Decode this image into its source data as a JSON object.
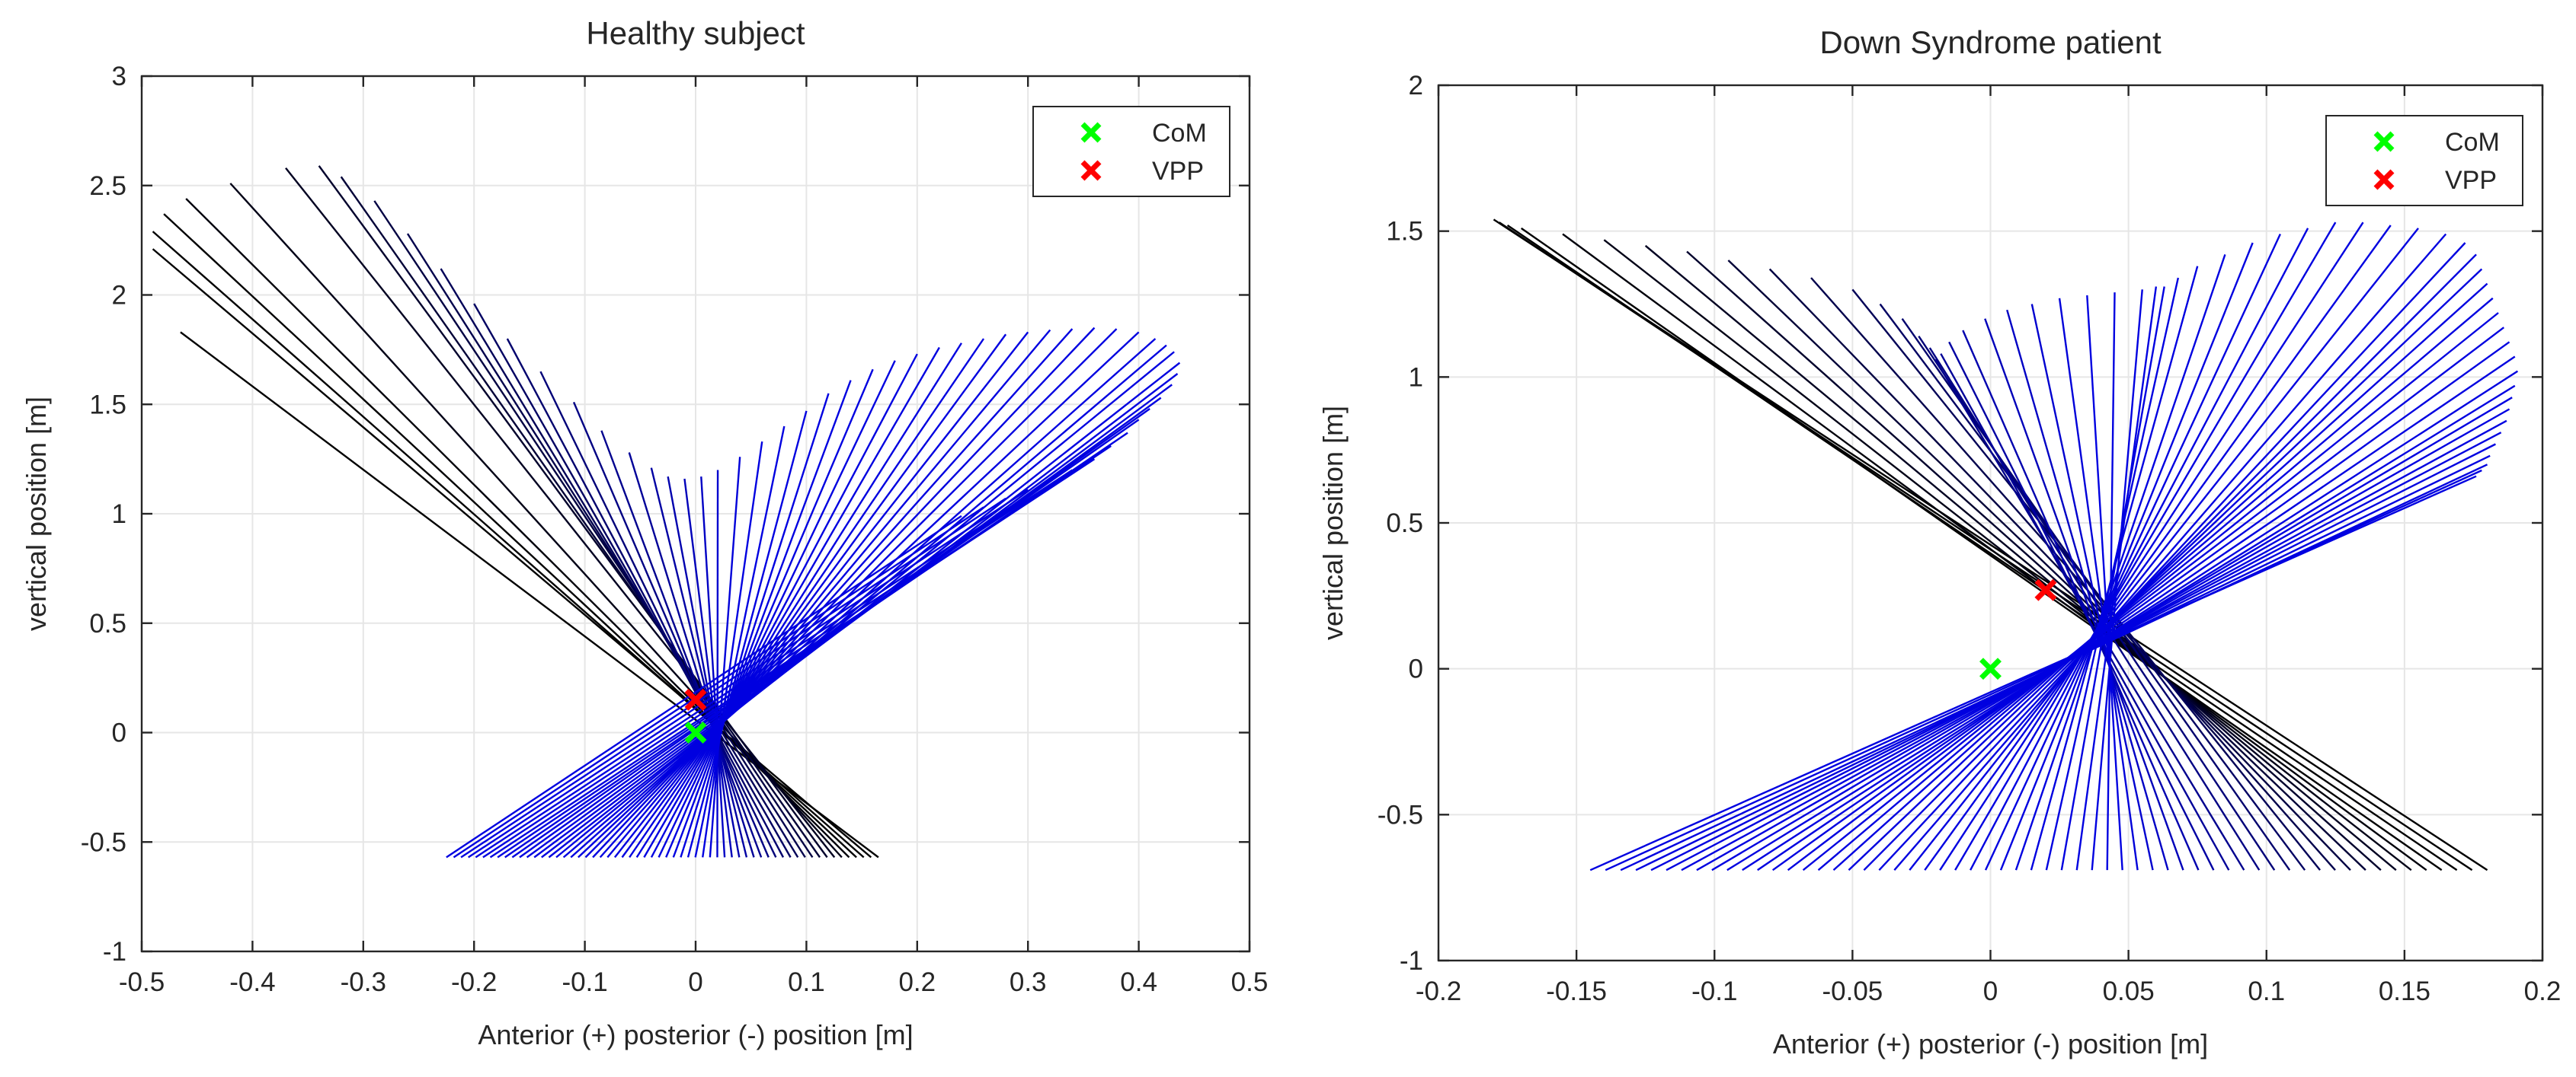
{
  "figure": {
    "description_free": true,
    "colors": {
      "black_series": "#000000",
      "blue_series": "#0000e0",
      "com_marker": "#00ff00",
      "vpp_marker": "#ff0000",
      "grid": "#e6e6e6",
      "axis": "#262626"
    }
  },
  "chart_data": [
    {
      "type": "line",
      "title": "Healthy subject",
      "xlabel": "Anterior (+) posterior (-) position [m]",
      "ylabel": "vertical position [m]",
      "xlim": [
        -0.5,
        0.5
      ],
      "ylim": [
        -1,
        3
      ],
      "xticks": [
        -0.5,
        -0.4,
        -0.3,
        -0.2,
        -0.1,
        0,
        0.1,
        0.2,
        0.3,
        0.4,
        0.5
      ],
      "xtick_labels": [
        "-0.5",
        "-0.4",
        "-0.3",
        "-0.2",
        "-0.1",
        "0",
        "0.1",
        "0.2",
        "0.3",
        "0.4",
        "0.5"
      ],
      "yticks": [
        -1,
        -0.5,
        0,
        0.5,
        1,
        1.5,
        2,
        2.5,
        3
      ],
      "ytick_labels": [
        "-1",
        "-0.5",
        "0",
        "0.5",
        "1",
        "1.5",
        "2",
        "2.5",
        "3"
      ],
      "grid": true,
      "legend": {
        "location": "top-right",
        "entries": [
          "CoM",
          "VPP"
        ]
      },
      "markers": {
        "CoM": {
          "x": 0,
          "y": 0,
          "color": "#00ff00"
        },
        "VPP": {
          "x": 0,
          "y": 0.15,
          "color": "#ff0000"
        }
      },
      "force_lines": {
        "n": 60,
        "ground_y": -0.57,
        "ground_x_range": [
          0.165,
          -0.225
        ],
        "top_points": [
          [
            -0.465,
            1.83
          ],
          [
            -0.49,
            2.21
          ],
          [
            -0.49,
            2.29
          ],
          [
            -0.48,
            2.37
          ],
          [
            -0.46,
            2.44
          ],
          [
            -0.42,
            2.51
          ],
          [
            -0.37,
            2.58
          ],
          [
            -0.34,
            2.59
          ],
          [
            -0.32,
            2.54
          ],
          [
            -0.29,
            2.43
          ],
          [
            -0.26,
            2.28
          ],
          [
            -0.23,
            2.12
          ],
          [
            -0.2,
            1.96
          ],
          [
            -0.17,
            1.8
          ],
          [
            -0.14,
            1.65
          ],
          [
            -0.11,
            1.51
          ],
          [
            -0.085,
            1.38
          ],
          [
            -0.06,
            1.28
          ],
          [
            -0.04,
            1.21
          ],
          [
            -0.025,
            1.17
          ],
          [
            -0.01,
            1.16
          ],
          [
            0.005,
            1.17
          ],
          [
            0.02,
            1.2
          ],
          [
            0.04,
            1.26
          ],
          [
            0.06,
            1.33
          ],
          [
            0.08,
            1.4
          ],
          [
            0.1,
            1.47
          ],
          [
            0.12,
            1.55
          ],
          [
            0.14,
            1.61
          ],
          [
            0.16,
            1.66
          ],
          [
            0.18,
            1.7
          ],
          [
            0.2,
            1.73
          ],
          [
            0.22,
            1.76
          ],
          [
            0.24,
            1.78
          ],
          [
            0.26,
            1.8
          ],
          [
            0.28,
            1.82
          ],
          [
            0.3,
            1.83
          ],
          [
            0.32,
            1.84
          ],
          [
            0.34,
            1.845
          ],
          [
            0.36,
            1.85
          ],
          [
            0.38,
            1.845
          ],
          [
            0.4,
            1.83
          ],
          [
            0.415,
            1.8
          ],
          [
            0.425,
            1.77
          ],
          [
            0.432,
            1.74
          ],
          [
            0.437,
            1.69
          ],
          [
            0.435,
            1.64
          ],
          [
            0.43,
            1.59
          ],
          [
            0.42,
            1.53
          ],
          [
            0.41,
            1.48
          ],
          [
            0.4,
            1.43
          ],
          [
            0.39,
            1.37
          ],
          [
            0.375,
            1.31
          ],
          [
            0.36,
            1.25
          ],
          [
            0.34,
            1.2
          ],
          [
            0.32,
            1.15
          ],
          [
            0.3,
            1.11
          ],
          [
            0.28,
            1.07
          ],
          [
            0.26,
            1.03
          ],
          [
            0.24,
            0.99
          ]
        ]
      }
    },
    {
      "type": "line",
      "title": "Down Syndrome patient",
      "xlabel": "Anterior (+) posterior (-) position [m]",
      "ylabel": "vertical position [m]",
      "xlim": [
        -0.2,
        0.2
      ],
      "ylim": [
        -1,
        2
      ],
      "xticks": [
        -0.2,
        -0.15,
        -0.1,
        -0.05,
        0,
        0.05,
        0.1,
        0.15,
        0.2
      ],
      "xtick_labels": [
        "-0.2",
        "-0.15",
        "-0.1",
        "-0.05",
        "0",
        "0.05",
        "0.1",
        "0.15",
        "0.2"
      ],
      "yticks": [
        -1,
        -0.5,
        0,
        0.5,
        1,
        1.5,
        2
      ],
      "ytick_labels": [
        "-1",
        "-0.5",
        "0",
        "0.5",
        "1",
        "1.5",
        "2"
      ],
      "grid": true,
      "legend": {
        "location": "top-right",
        "entries": [
          "CoM",
          "VPP"
        ]
      },
      "markers": {
        "CoM": {
          "x": 0,
          "y": 0,
          "color": "#00ff00"
        },
        "VPP": {
          "x": 0.02,
          "y": 0.27,
          "color": "#ff0000"
        }
      },
      "force_lines": {
        "n": 60,
        "ground_y": -0.69,
        "ground_x_range": [
          0.18,
          -0.145
        ],
        "top_points": [
          [
            -0.18,
            1.54
          ],
          [
            -0.178,
            1.53
          ],
          [
            -0.175,
            1.52
          ],
          [
            -0.17,
            1.51
          ],
          [
            -0.155,
            1.49
          ],
          [
            -0.14,
            1.47
          ],
          [
            -0.125,
            1.45
          ],
          [
            -0.11,
            1.43
          ],
          [
            -0.095,
            1.4
          ],
          [
            -0.08,
            1.37
          ],
          [
            -0.065,
            1.34
          ],
          [
            -0.05,
            1.3
          ],
          [
            -0.04,
            1.25
          ],
          [
            -0.032,
            1.2
          ],
          [
            -0.026,
            1.14
          ],
          [
            -0.022,
            1.1
          ],
          [
            -0.02,
            1.06
          ],
          [
            -0.018,
            1.08
          ],
          [
            -0.015,
            1.12
          ],
          [
            -0.01,
            1.16
          ],
          [
            -0.002,
            1.2
          ],
          [
            0.006,
            1.23
          ],
          [
            0.015,
            1.25
          ],
          [
            0.025,
            1.27
          ],
          [
            0.035,
            1.28
          ],
          [
            0.045,
            1.29
          ],
          [
            0.055,
            1.3
          ],
          [
            0.06,
            1.31
          ],
          [
            0.063,
            1.31
          ],
          [
            0.068,
            1.34
          ],
          [
            0.075,
            1.38
          ],
          [
            0.085,
            1.42
          ],
          [
            0.095,
            1.46
          ],
          [
            0.105,
            1.49
          ],
          [
            0.115,
            1.51
          ],
          [
            0.125,
            1.53
          ],
          [
            0.135,
            1.53
          ],
          [
            0.145,
            1.52
          ],
          [
            0.155,
            1.51
          ],
          [
            0.165,
            1.49
          ],
          [
            0.172,
            1.46
          ],
          [
            0.176,
            1.42
          ],
          [
            0.178,
            1.37
          ],
          [
            0.18,
            1.32
          ],
          [
            0.182,
            1.27
          ],
          [
            0.184,
            1.22
          ],
          [
            0.186,
            1.17
          ],
          [
            0.188,
            1.12
          ],
          [
            0.19,
            1.07
          ],
          [
            0.191,
            1.02
          ],
          [
            0.19,
            0.97
          ],
          [
            0.189,
            0.93
          ],
          [
            0.188,
            0.89
          ],
          [
            0.187,
            0.85
          ],
          [
            0.185,
            0.81
          ],
          [
            0.183,
            0.77
          ],
          [
            0.181,
            0.73
          ],
          [
            0.18,
            0.7
          ],
          [
            0.178,
            0.68
          ],
          [
            0.176,
            0.66
          ]
        ]
      }
    }
  ]
}
